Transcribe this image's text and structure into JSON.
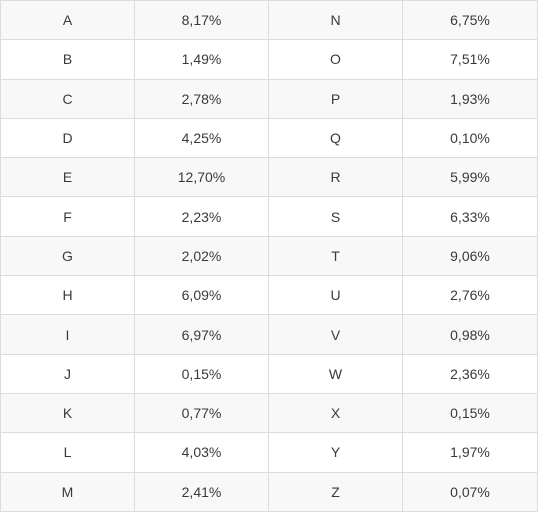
{
  "table": {
    "rows": [
      {
        "letter_left": "A",
        "freq_left": "8,17%",
        "letter_right": "N",
        "freq_right": "6,75%"
      },
      {
        "letter_left": "B",
        "freq_left": "1,49%",
        "letter_right": "O",
        "freq_right": "7,51%"
      },
      {
        "letter_left": "C",
        "freq_left": "2,78%",
        "letter_right": "P",
        "freq_right": "1,93%"
      },
      {
        "letter_left": "D",
        "freq_left": "4,25%",
        "letter_right": "Q",
        "freq_right": "0,10%"
      },
      {
        "letter_left": "E",
        "freq_left": "12,70%",
        "letter_right": "R",
        "freq_right": "5,99%"
      },
      {
        "letter_left": "F",
        "freq_left": "2,23%",
        "letter_right": "S",
        "freq_right": "6,33%"
      },
      {
        "letter_left": "G",
        "freq_left": "2,02%",
        "letter_right": "T",
        "freq_right": "9,06%"
      },
      {
        "letter_left": "H",
        "freq_left": "6,09%",
        "letter_right": "U",
        "freq_right": "2,76%"
      },
      {
        "letter_left": "I",
        "freq_left": "6,97%",
        "letter_right": "V",
        "freq_right": "0,98%"
      },
      {
        "letter_left": "J",
        "freq_left": "0,15%",
        "letter_right": "W",
        "freq_right": "2,36%"
      },
      {
        "letter_left": "K",
        "freq_left": "0,77%",
        "letter_right": "X",
        "freq_right": "0,15%"
      },
      {
        "letter_left": "L",
        "freq_left": "4,03%",
        "letter_right": "Y",
        "freq_right": "1,97%"
      },
      {
        "letter_left": "M",
        "freq_left": "2,41%",
        "letter_right": "Z",
        "freq_right": "0,07%"
      }
    ]
  }
}
